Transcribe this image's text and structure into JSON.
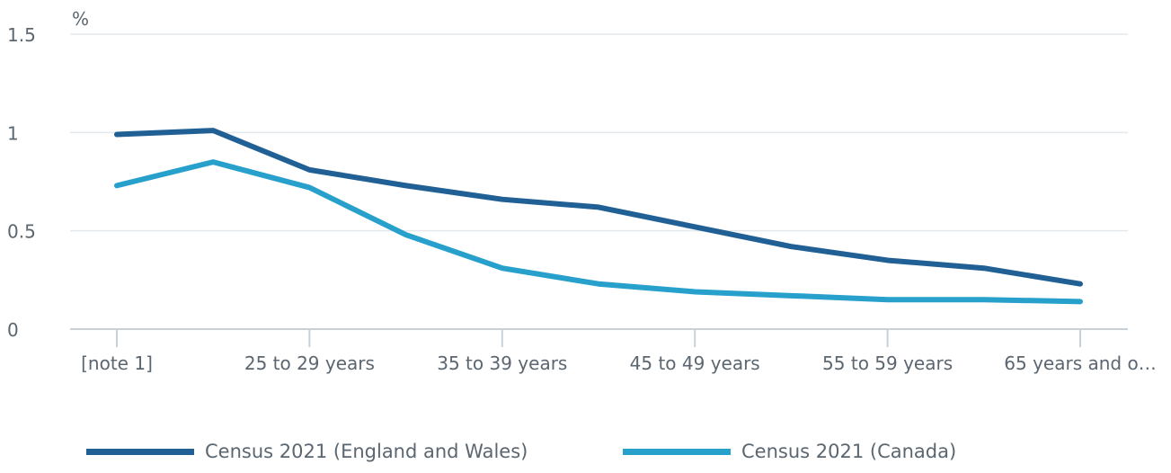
{
  "chart_data": {
    "type": "line",
    "ylabel": "%",
    "ylim": [
      0,
      1.5
    ],
    "yticks": [
      0,
      0.5,
      1,
      1.5
    ],
    "ytick_labels": [
      "0",
      "0.5",
      "1",
      "1.5"
    ],
    "xtick_labels": [
      "[note 1]",
      "25 to 29 years",
      "35 to 39 years",
      "45 to 49 years",
      "55 to 59 years",
      "65 years and o…"
    ],
    "grid": true,
    "legend_position": "bottom",
    "series": [
      {
        "name": "Census 2021 (England and Wales)",
        "color": "#206095",
        "values": [
          0.99,
          1.01,
          0.81,
          0.73,
          0.66,
          0.62,
          0.52,
          0.42,
          0.35,
          0.31,
          0.23
        ]
      },
      {
        "name": "Census 2021 (Canada)",
        "color": "#27a0cc",
        "values": [
          0.73,
          0.85,
          0.72,
          0.48,
          0.31,
          0.23,
          0.19,
          0.17,
          0.15,
          0.15,
          0.14
        ]
      }
    ]
  }
}
